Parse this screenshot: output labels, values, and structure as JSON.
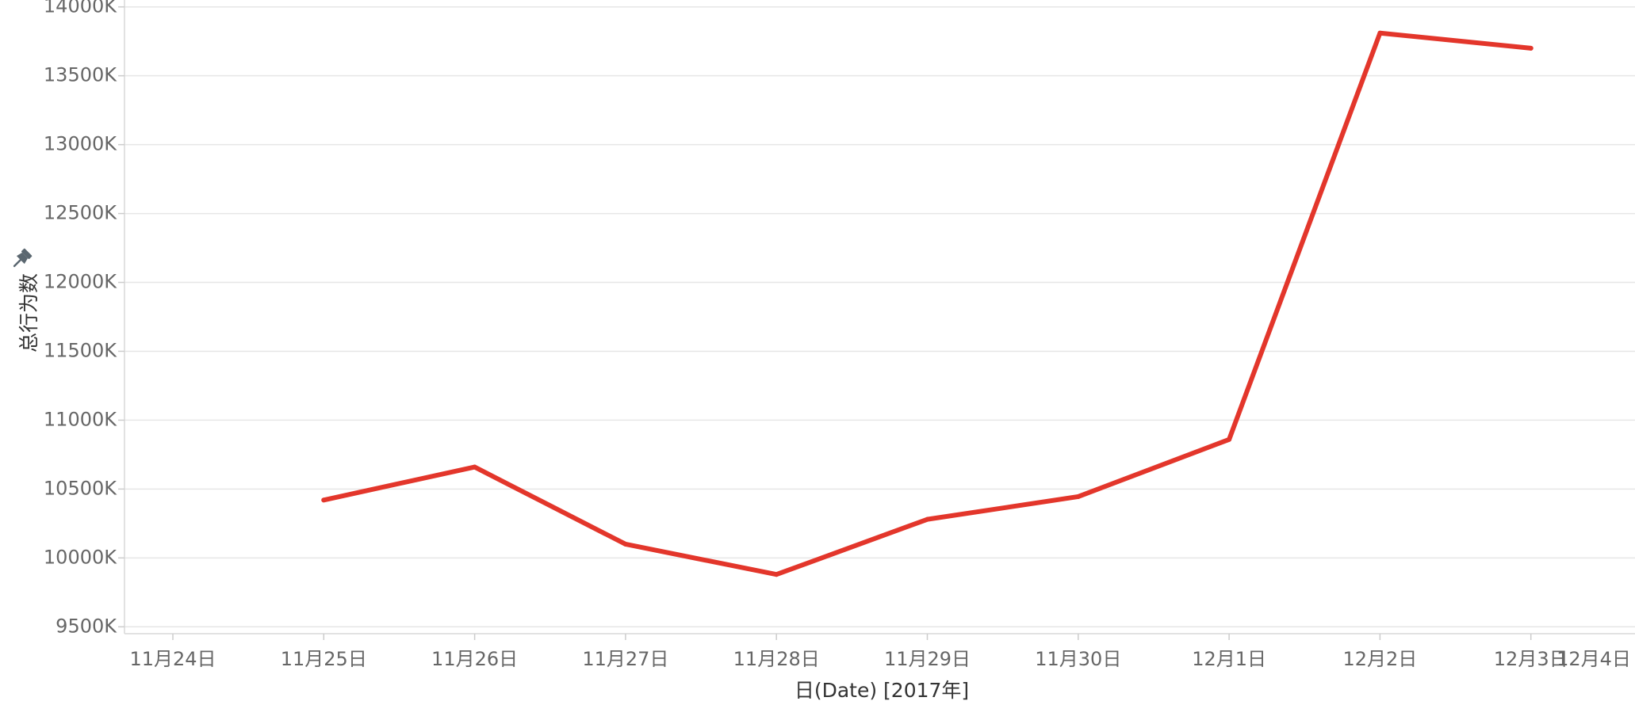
{
  "chart_data": {
    "type": "line",
    "xlabel": "日(Date) [2017年]",
    "ylabel": "总行为数",
    "x_ticks": [
      "11月24日",
      "11月25日",
      "11月26日",
      "11月27日",
      "11月28日",
      "11月29日",
      "11月30日",
      "12月1日",
      "12月2日",
      "12月3日",
      "12月4日"
    ],
    "y_ticks": [
      "9500K",
      "10000K",
      "10500K",
      "11000K",
      "11500K",
      "12000K",
      "12500K",
      "13000K",
      "13500K",
      "14000K"
    ],
    "ylim": [
      9450,
      14050
    ],
    "xlim": [
      "11月24日",
      "12月4日"
    ],
    "grid": "horizontal",
    "series": [
      {
        "color": "#e3362b",
        "x": [
          "11月25日",
          "11月26日",
          "11月27日",
          "11月28日",
          "11月29日",
          "11月30日",
          "12月1日",
          "12月2日",
          "12月3日"
        ],
        "values": [
          10420,
          10660,
          10100,
          9880,
          10280,
          10445,
          10860,
          13810,
          13700
        ]
      }
    ]
  },
  "icons": {
    "ylabel_pin": "pin-icon"
  },
  "colors": {
    "line": "#e3362b",
    "grid": "#e6e6e6",
    "text": "#666666"
  }
}
